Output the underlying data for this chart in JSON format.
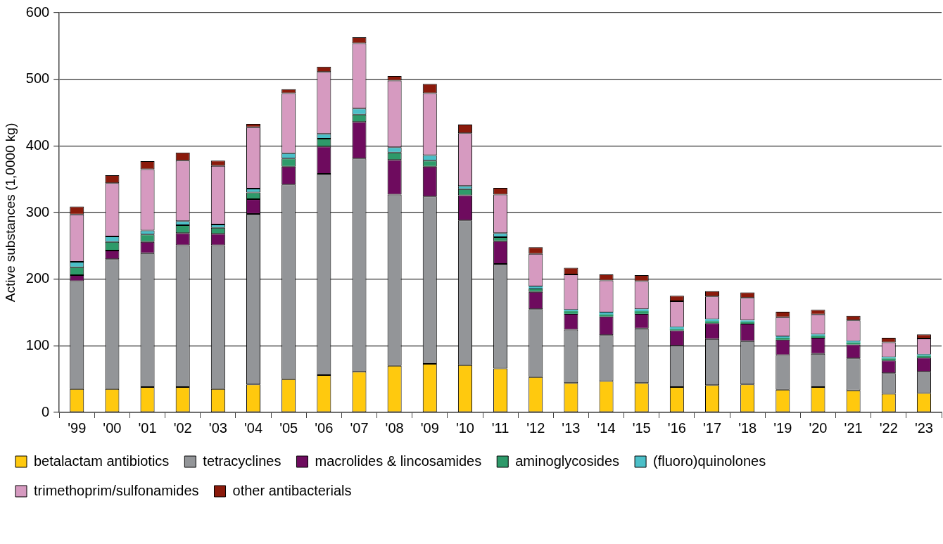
{
  "chart_data": {
    "type": "bar",
    "stacked": true,
    "ylabel": "Active substances (1,0000 kg)",
    "categories": [
      "'99",
      "'00",
      "'01",
      "'02",
      "'03",
      "'04",
      "'05",
      "'06",
      "'07",
      "'08",
      "'09",
      "'10",
      "'11",
      "'12",
      "'13",
      "'14",
      "'15",
      "'16",
      "'17",
      "'18",
      "'19",
      "'20",
      "'21",
      "'22",
      "'23"
    ],
    "ylim": [
      0,
      600
    ],
    "yticks": [
      0,
      100,
      200,
      300,
      400,
      500,
      600
    ],
    "grid": "y",
    "legend": "bottom",
    "series": [
      {
        "name": "betalactam antibiotics",
        "color": "#ffc90e",
        "values": [
          35,
          35,
          38,
          38,
          35,
          42,
          50,
          56,
          61,
          70,
          73,
          71,
          66,
          53,
          44,
          47,
          44,
          38,
          41,
          42,
          34,
          38,
          33,
          28,
          29
        ]
      },
      {
        "name": "tetracyclines",
        "color": "#939598",
        "values": [
          162,
          195,
          201,
          213,
          216,
          256,
          292,
          302,
          320,
          257,
          251,
          217,
          157,
          102,
          80,
          69,
          82,
          62,
          69,
          65,
          52,
          50,
          48,
          31,
          32
        ]
      },
      {
        "name": "macrolides & lincosamides",
        "color": "#6e0b5e",
        "values": [
          9,
          13,
          17,
          18,
          17,
          22,
          27,
          41,
          55,
          52,
          45,
          38,
          34,
          26,
          24,
          28,
          22,
          23,
          24,
          26,
          23,
          24,
          21,
          19,
          21
        ]
      },
      {
        "name": "aminoglycosides",
        "color": "#2e9a6a",
        "values": [
          12,
          13,
          11,
          12,
          9,
          10,
          12,
          12,
          11,
          11,
          9,
          9,
          6,
          5,
          4,
          3,
          4,
          2,
          3,
          3,
          3,
          3,
          3,
          3,
          3
        ]
      },
      {
        "name": "(fluoro)quinolones",
        "color": "#4bbfc8",
        "values": [
          8,
          8,
          6,
          6,
          5,
          6,
          8,
          7,
          9,
          8,
          8,
          5,
          6,
          3,
          2,
          3,
          3,
          3,
          3,
          2,
          2,
          2,
          2,
          2,
          2
        ]
      },
      {
        "name": "trimethoprim/sulfonamides",
        "color": "#d69ac0",
        "values": [
          71,
          80,
          92,
          91,
          88,
          92,
          90,
          93,
          98,
          100,
          93,
          79,
          58,
          49,
          53,
          48,
          42,
          39,
          34,
          34,
          29,
          30,
          31,
          22,
          24
        ]
      },
      {
        "name": "other antibacterials",
        "color": "#8b1a0b",
        "values": [
          12,
          12,
          12,
          12,
          8,
          5,
          6,
          8,
          9,
          7,
          14,
          13,
          10,
          10,
          10,
          9,
          9,
          8,
          8,
          8,
          8,
          7,
          7,
          7,
          6
        ]
      }
    ]
  }
}
